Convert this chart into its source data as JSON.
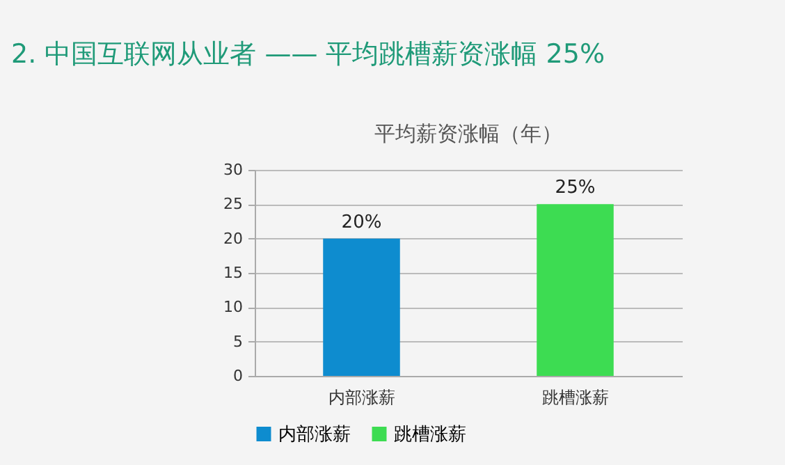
{
  "chart_data": {
    "type": "bar",
    "title": "2. 中国互联网从业者 —— 平均跳槽薪资涨幅 25%",
    "subtitle": "平均薪资涨幅（年）",
    "categories": [
      "内部涨薪",
      "跳槽涨薪"
    ],
    "series": [
      {
        "name": "内部涨薪",
        "color": "#0e8ccf",
        "values": [
          20,
          null
        ],
        "value_labels": [
          "20%",
          null
        ]
      },
      {
        "name": "跳槽涨薪",
        "color": "#3ddc52",
        "values": [
          null,
          25
        ],
        "value_labels": [
          null,
          "25%"
        ]
      }
    ],
    "ylim": [
      0,
      30
    ],
    "yticks": [
      0,
      5,
      10,
      15,
      20,
      25,
      30
    ],
    "grid": "y",
    "legend": "bottom"
  }
}
